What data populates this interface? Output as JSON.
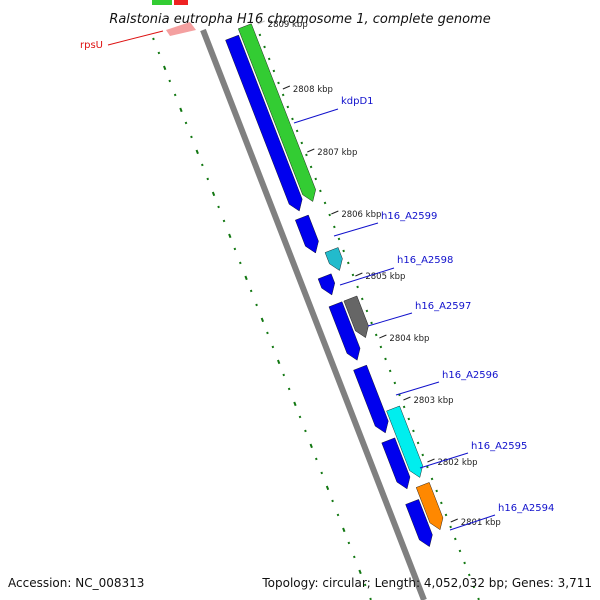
{
  "title": "Ralstonia eutropha H16 chromosome 1, complete genome",
  "footer": {
    "accession": "Accession: NC_008313",
    "summary": "Topology: circular; Length: 4,052,032 bp; Genes: 3,711"
  },
  "ticks": [
    {
      "label": "2809 kbp",
      "faded": true
    },
    {
      "label": "2808 kbp"
    },
    {
      "label": "2807 kbp"
    },
    {
      "label": "2806 kbp"
    },
    {
      "label": "2805 kbp"
    },
    {
      "label": "2804 kbp"
    },
    {
      "label": "2803 kbp"
    },
    {
      "label": "2802 kbp"
    },
    {
      "label": "2801 kbp"
    }
  ],
  "gene_labels": [
    {
      "name": "rpsU",
      "color": "#dd1111"
    },
    {
      "name": "kdpD1",
      "color": "#1111cc"
    },
    {
      "name": "h16_A2599",
      "color": "#1111cc"
    },
    {
      "name": "h16_A2598",
      "color": "#1111cc"
    },
    {
      "name": "h16_A2597",
      "color": "#1111cc"
    },
    {
      "name": "h16_A2596",
      "color": "#1111cc"
    },
    {
      "name": "h16_A2595",
      "color": "#1111cc"
    },
    {
      "name": "h16_A2594",
      "color": "#1111cc"
    }
  ],
  "colors": {
    "backbone": "#808080",
    "cds_forward": "#0000ee",
    "cds_green": "#33cc33",
    "cds_teal": "#22bbcc",
    "cds_gray": "#666666",
    "cds_cyan": "#00eeee",
    "cds_orange": "#ff8800",
    "cds_red": "#ee2222",
    "gc_dots": "#117711",
    "tick_dots": "#117711"
  }
}
